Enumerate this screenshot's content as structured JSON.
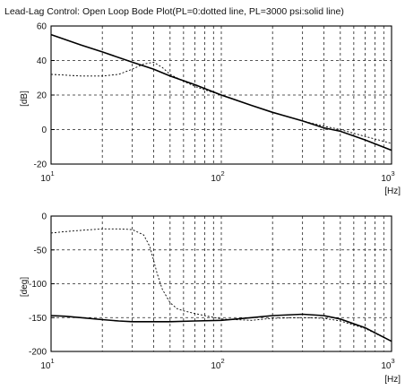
{
  "title": "Lead-Lag Control: Open Loop Bode Plot(PL=0:dotted line, PL=3000 psi:solid line)",
  "chart_data": [
    {
      "type": "line",
      "xscale": "log",
      "xlim": [
        10,
        1000
      ],
      "ylim": [
        -20,
        60
      ],
      "ylabel": "[dB]",
      "xlabel": "[Hz]",
      "y_ticks": [
        "60",
        "40",
        "20",
        "0",
        "-20"
      ],
      "y_tick_values": [
        60,
        40,
        20,
        0,
        -20
      ],
      "x_ticks": [
        {
          "value": 10,
          "base": "10",
          "exp": "1"
        },
        {
          "value": 100,
          "base": "10",
          "exp": "2"
        },
        {
          "value": 1000,
          "base": "10",
          "exp": "3"
        }
      ],
      "grid": true,
      "series": [
        {
          "style": "dotted",
          "x": [
            10,
            15,
            20,
            25,
            30,
            35,
            40,
            45,
            50,
            60,
            70,
            80,
            100,
            150,
            200,
            300,
            400,
            500,
            700,
            1000
          ],
          "y": [
            32,
            31,
            31,
            32,
            35,
            38,
            39,
            36,
            32,
            28,
            25,
            23,
            20,
            14,
            10,
            5,
            2,
            0,
            -4,
            -8
          ]
        },
        {
          "style": "solid",
          "x": [
            10,
            15,
            20,
            30,
            40,
            50,
            70,
            100,
            150,
            200,
            300,
            400,
            500,
            700,
            1000
          ],
          "y": [
            55,
            49,
            45,
            39,
            35,
            31,
            26,
            20,
            14,
            10,
            5,
            1,
            -1,
            -6,
            -12
          ]
        }
      ]
    },
    {
      "type": "line",
      "xscale": "log",
      "xlim": [
        10,
        1000
      ],
      "ylim": [
        -200,
        0
      ],
      "ylabel": "[deg]",
      "xlabel": "[Hz]",
      "y_ticks": [
        "0",
        "-50",
        "-100",
        "-150",
        "-200"
      ],
      "y_tick_values": [
        0,
        -50,
        -100,
        -150,
        -200
      ],
      "x_ticks": [
        {
          "value": 10,
          "base": "10",
          "exp": "1"
        },
        {
          "value": 100,
          "base": "10",
          "exp": "2"
        },
        {
          "value": 1000,
          "base": "10",
          "exp": "3"
        }
      ],
      "grid": true,
      "series": [
        {
          "style": "dotted",
          "x": [
            10,
            12,
            15,
            20,
            25,
            30,
            35,
            38,
            40,
            42,
            45,
            50,
            55,
            60,
            70,
            80,
            100,
            150,
            200,
            300,
            400,
            500,
            700,
            1000
          ],
          "y": [
            -25,
            -23,
            -21,
            -19,
            -19,
            -20,
            -28,
            -45,
            -65,
            -85,
            -108,
            -128,
            -137,
            -140,
            -144,
            -147,
            -152,
            -154,
            -151,
            -150,
            -151,
            -155,
            -166,
            -185
          ]
        },
        {
          "style": "solid",
          "x": [
            10,
            12,
            15,
            20,
            25,
            30,
            40,
            50,
            70,
            100,
            150,
            200,
            300,
            400,
            500,
            700,
            1000
          ],
          "y": [
            -147,
            -148,
            -150,
            -153,
            -155,
            -156,
            -156,
            -156,
            -155,
            -154,
            -150,
            -147,
            -145,
            -147,
            -152,
            -165,
            -185
          ]
        }
      ]
    }
  ]
}
